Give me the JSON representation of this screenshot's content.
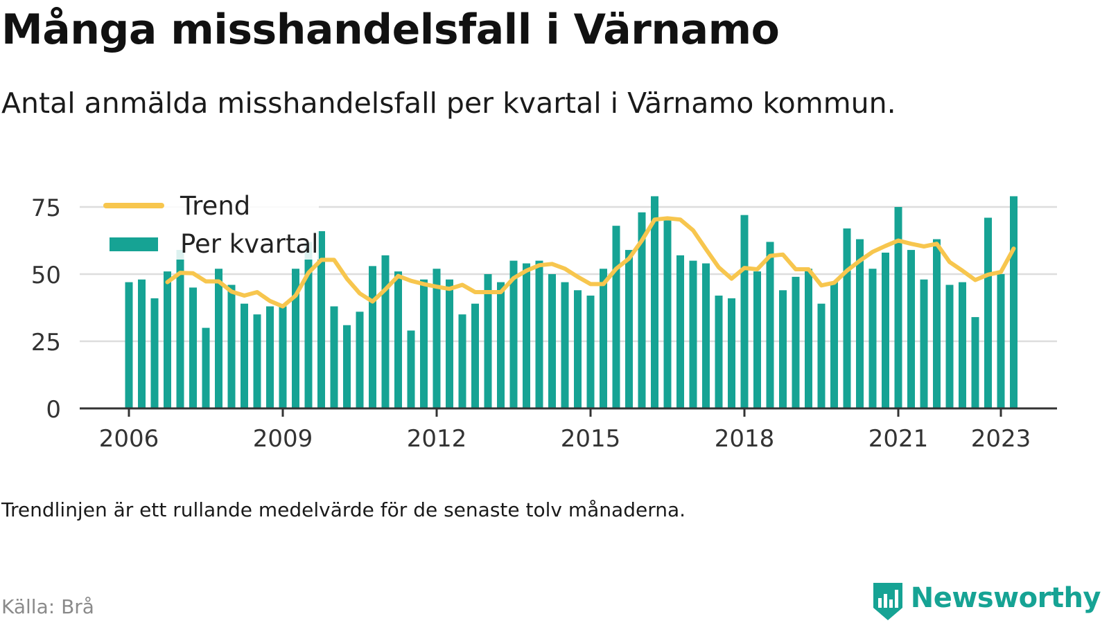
{
  "title": "Många misshandelsfall i Värnamo",
  "subtitle": "Antal anmälda misshandelsfall per kvartal i Värnamo kommun.",
  "note": "Trendlinjen är ett rullande medelvärde för de senaste tolv månaderna.",
  "source": "Källa: Brå",
  "brand": "Newsworthy",
  "colors": {
    "bar": "#16a394",
    "trend": "#f7c64e",
    "grid": "#dddddd",
    "axis": "#333333",
    "brand": "#16a394"
  },
  "chart_data": {
    "type": "bar",
    "title": "Många misshandelsfall i Värnamo",
    "subtitle": "Antal anmälda misshandelsfall per kvartal i Värnamo kommun.",
    "xlabel": "",
    "ylabel": "",
    "ylim": [
      0,
      80
    ],
    "y_ticks": [
      0,
      25,
      50,
      75
    ],
    "x_tick_labels": [
      "2006",
      "2009",
      "2012",
      "2015",
      "2018",
      "2021",
      "2023"
    ],
    "x_tick_quarter_index": [
      0,
      12,
      24,
      36,
      48,
      60,
      68
    ],
    "grid": true,
    "legend_position": "top-left",
    "categories": [
      "2006Q1",
      "2006Q2",
      "2006Q3",
      "2006Q4",
      "2007Q1",
      "2007Q2",
      "2007Q3",
      "2007Q4",
      "2008Q1",
      "2008Q2",
      "2008Q3",
      "2008Q4",
      "2009Q1",
      "2009Q2",
      "2009Q3",
      "2009Q4",
      "2010Q1",
      "2010Q2",
      "2010Q3",
      "2010Q4",
      "2011Q1",
      "2011Q2",
      "2011Q3",
      "2011Q4",
      "2012Q1",
      "2012Q2",
      "2012Q3",
      "2012Q4",
      "2013Q1",
      "2013Q2",
      "2013Q3",
      "2013Q4",
      "2014Q1",
      "2014Q2",
      "2014Q3",
      "2014Q4",
      "2015Q1",
      "2015Q2",
      "2015Q3",
      "2015Q4",
      "2016Q1",
      "2016Q2",
      "2016Q3",
      "2016Q4",
      "2017Q1",
      "2017Q2",
      "2017Q3",
      "2017Q4",
      "2018Q1",
      "2018Q2",
      "2018Q3",
      "2018Q4",
      "2019Q1",
      "2019Q2",
      "2019Q3",
      "2019Q4",
      "2020Q1",
      "2020Q2",
      "2020Q3",
      "2020Q4",
      "2021Q1",
      "2021Q2",
      "2021Q3",
      "2021Q4",
      "2022Q1",
      "2022Q2",
      "2022Q3",
      "2022Q4",
      "2023Q1",
      "2023Q2"
    ],
    "series": [
      {
        "name": "Per kvartal",
        "type": "bar",
        "values": [
          47,
          48,
          41,
          51,
          59,
          45,
          30,
          52,
          46,
          39,
          35,
          38,
          38,
          52,
          62,
          66,
          38,
          31,
          36,
          53,
          57,
          51,
          29,
          48,
          52,
          48,
          35,
          39,
          50,
          47,
          55,
          54,
          55,
          50,
          47,
          44,
          42,
          52,
          68,
          59,
          73,
          79,
          70,
          57,
          55,
          54,
          42,
          41,
          72,
          51,
          62,
          44,
          49,
          52,
          39,
          47,
          67,
          63,
          52,
          58,
          75,
          59,
          48,
          63,
          46,
          47,
          34,
          71,
          50,
          79
        ]
      },
      {
        "name": "Trend",
        "type": "line",
        "values": [
          null,
          null,
          null,
          47,
          50.5,
          50.3,
          47.3,
          47.3,
          43.5,
          42,
          43.3,
          40,
          38,
          42,
          50.5,
          55.3,
          55.3,
          48.3,
          42.8,
          39.8,
          44.3,
          49.3,
          47.5,
          46.3,
          45.3,
          44.5,
          46,
          43.3,
          43.3,
          43.3,
          48.5,
          51.3,
          53.3,
          53.8,
          52,
          49,
          46.3,
          46.3,
          52,
          55.8,
          62.5,
          70.3,
          70.8,
          70.3,
          66.3,
          59.3,
          52.5,
          48.3,
          52.3,
          51.8,
          56.8,
          57.3,
          51.8,
          51.8,
          45.8,
          46.8,
          51.3,
          55,
          58.3,
          60.5,
          62.5,
          61.3,
          60.3,
          61.3,
          54.5,
          51.3,
          47.8,
          49.8,
          50.8,
          59.5
        ]
      }
    ]
  }
}
